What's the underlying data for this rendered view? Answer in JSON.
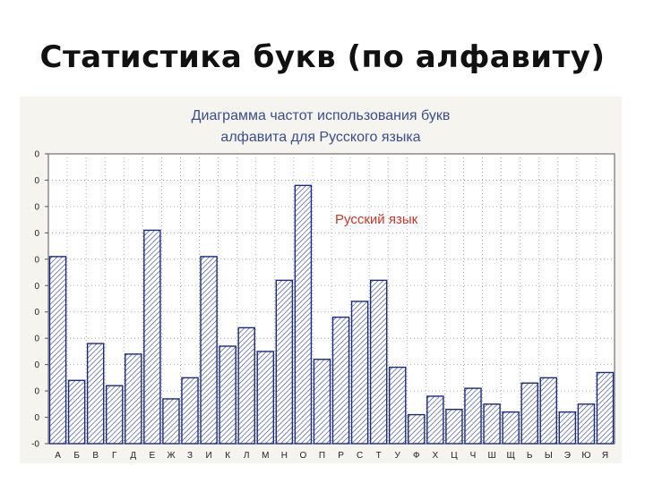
{
  "slide": {
    "title": "Статистика букв (по алфавиту)"
  },
  "colors": {
    "bar_fill": "#ffffff",
    "bar_stroke": "#1b2a7a",
    "hatch": "#3a4a8c",
    "annotation": "#c0392b",
    "panel": "#f6f4ee",
    "title": "#3a4e8c"
  },
  "chart_data": {
    "type": "bar",
    "title_line1": "Диаграмма частот использования букв",
    "title_line2": "алфавита для Русского языка",
    "categories": [
      "А",
      "Б",
      "В",
      "Г",
      "Д",
      "Е",
      "Ж",
      "З",
      "И",
      "К",
      "Л",
      "М",
      "Н",
      "О",
      "П",
      "Р",
      "С",
      "Т",
      "У",
      "Ф",
      "Х",
      "Ц",
      "Ч",
      "Ш",
      "Щ",
      "Ь",
      "Ы",
      "Э",
      "Ю",
      "Я"
    ],
    "series": [
      {
        "name": "Русский язык",
        "values": [
          7.1,
          2.4,
          3.8,
          2.2,
          3.4,
          8.1,
          1.7,
          2.5,
          7.1,
          3.7,
          4.4,
          3.5,
          6.2,
          9.8,
          3.2,
          4.8,
          5.4,
          6.2,
          2.9,
          1.1,
          1.8,
          1.3,
          2.1,
          1.5,
          1.2,
          2.3,
          2.5,
          1.2,
          1.5,
          2.7
        ]
      }
    ],
    "y_tick_labels": [
      "-0",
      "0",
      "0",
      "0",
      "0",
      "0",
      "0",
      "0",
      "0",
      "0",
      "0",
      "0"
    ],
    "ylim": [
      0,
      11
    ],
    "y_ticks": [
      0,
      1,
      2,
      3,
      4,
      5,
      6,
      7,
      8,
      9,
      10,
      11
    ],
    "grid": true,
    "annotation": "Русский язык",
    "xlabel": "",
    "ylabel": ""
  }
}
